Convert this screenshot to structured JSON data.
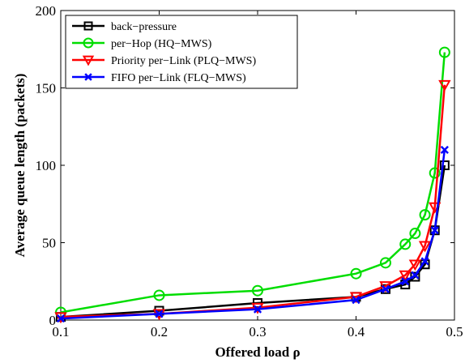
{
  "chart_data": {
    "type": "line",
    "xlabel": "Offered load ρ",
    "ylabel": "Average queue length (packets)",
    "xlim": [
      0.1,
      0.5
    ],
    "ylim": [
      0,
      200
    ],
    "xticks": [
      0.1,
      0.2,
      0.3,
      0.4,
      0.5
    ],
    "xtick_labels": [
      "0.1",
      "0.2",
      "0.3",
      "0.4",
      "0.5"
    ],
    "yticks": [
      0,
      50,
      100,
      150,
      200
    ],
    "ytick_labels": [
      "0",
      "50",
      "100",
      "150",
      "200"
    ],
    "grid": false,
    "legend_position": "top-left",
    "series": [
      {
        "name": "back−pressure",
        "color": "#000000",
        "marker": "square",
        "x": [
          0.1,
          0.2,
          0.3,
          0.4,
          0.43,
          0.45,
          0.46,
          0.47,
          0.48,
          0.49
        ],
        "y": [
          2,
          6,
          11,
          15,
          20,
          23,
          28,
          36,
          58,
          100
        ]
      },
      {
        "name": "per−Hop (HQ−MWS)",
        "color": "#00dd00",
        "marker": "circle",
        "x": [
          0.1,
          0.2,
          0.3,
          0.4,
          0.43,
          0.45,
          0.46,
          0.47,
          0.48,
          0.49
        ],
        "y": [
          5,
          16,
          19,
          30,
          37,
          49,
          56,
          68,
          95,
          173
        ]
      },
      {
        "name": "Priority per−Link (PLQ−MWS)",
        "color": "#ff0000",
        "marker": "triangle-down",
        "x": [
          0.1,
          0.2,
          0.3,
          0.4,
          0.43,
          0.45,
          0.46,
          0.47,
          0.48,
          0.49
        ],
        "y": [
          2,
          4,
          8,
          15,
          22,
          29,
          36,
          48,
          73,
          152
        ]
      },
      {
        "name": "FIFO per−Link (FLQ−MWS)",
        "color": "#0000ff",
        "marker": "x",
        "x": [
          0.1,
          0.2,
          0.3,
          0.4,
          0.43,
          0.45,
          0.46,
          0.47,
          0.48,
          0.49
        ],
        "y": [
          1,
          4,
          7,
          13,
          20,
          25,
          29,
          38,
          58,
          110
        ]
      }
    ]
  }
}
